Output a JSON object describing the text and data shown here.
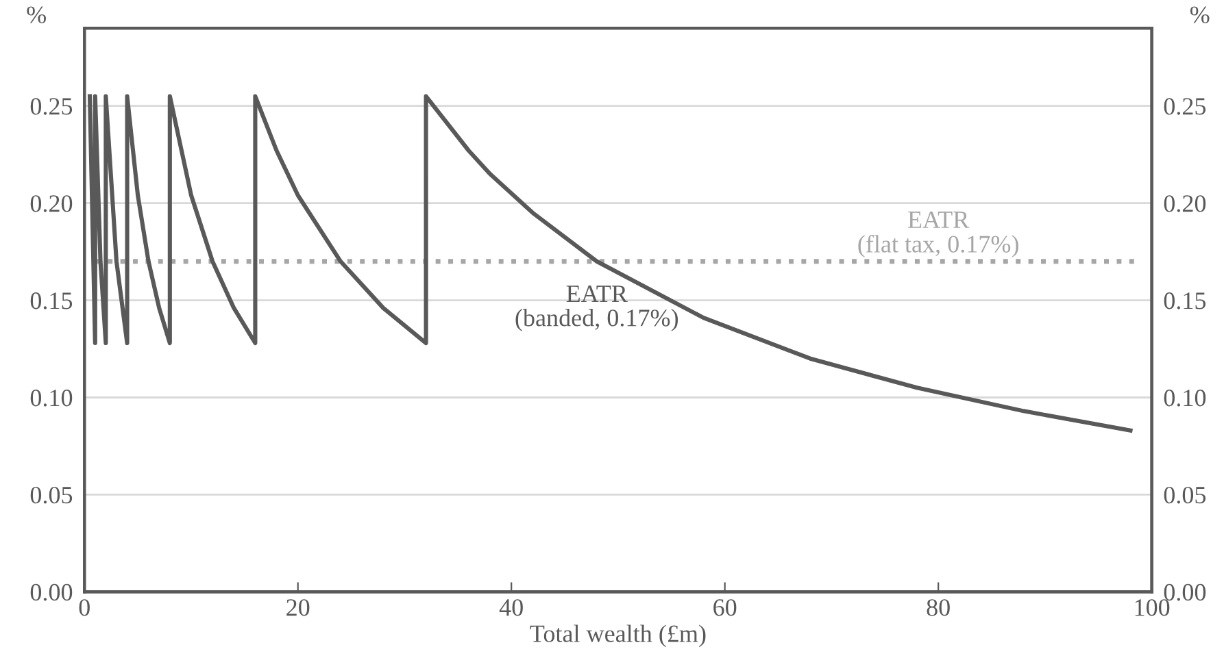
{
  "chart_data": {
    "type": "line",
    "xlabel": "Total wealth (£m)",
    "ylabel": "%",
    "y2label": "%",
    "xlim": [
      0,
      100
    ],
    "xticks": [
      0,
      20,
      40,
      60,
      80,
      100
    ],
    "ylim": [
      0,
      0.29
    ],
    "yticks": [
      {
        "value": 0,
        "label": "0.00"
      },
      {
        "value": 0.05,
        "label": "0.05"
      },
      {
        "value": 0.1,
        "label": "0.10"
      },
      {
        "value": 0.15,
        "label": "0.15"
      },
      {
        "value": 0.2,
        "label": "0.20"
      },
      {
        "value": 0.25,
        "label": "0.25"
      }
    ],
    "y2lim": [
      0,
      0.29
    ],
    "y2ticks": [
      {
        "value": 0,
        "label": "0.00"
      },
      {
        "value": 0.05,
        "label": "0.05"
      },
      {
        "value": 0.1,
        "label": "0.10"
      },
      {
        "value": 0.15,
        "label": "0.15"
      },
      {
        "value": 0.2,
        "label": "0.20"
      },
      {
        "value": 0.25,
        "label": "0.25"
      }
    ],
    "grid": "y",
    "legend": false,
    "marker": "none",
    "line_style": "solid",
    "series": [
      {
        "name": "EATR\n(banded, 0.17%)",
        "color": "#595959",
        "x": [
          0.5,
          1,
          1,
          1.5,
          2,
          2,
          3,
          4,
          4,
          5,
          6,
          7,
          8,
          8,
          10,
          12,
          14,
          16,
          16,
          18,
          20,
          24,
          28,
          32,
          32,
          36,
          38,
          42,
          48,
          58,
          68,
          78,
          88,
          98
        ],
        "values": [
          0.255,
          0.128,
          0.255,
          0.17,
          0.128,
          0.255,
          0.17,
          0.128,
          0.255,
          0.204,
          0.17,
          0.146,
          0.128,
          0.255,
          0.204,
          0.17,
          0.146,
          0.128,
          0.255,
          0.227,
          0.204,
          0.17,
          0.146,
          0.128,
          0.255,
          0.227,
          0.215,
          0.195,
          0.17,
          0.141,
          0.12,
          0.105,
          0.093,
          0.083
        ]
      }
    ],
    "ref_lines": [
      {
        "axis": "y",
        "value": 0.17,
        "label": "EATR\n(flat tax, 0.17%)",
        "color": "#a6a6a6",
        "line_style": "dotted"
      }
    ]
  }
}
